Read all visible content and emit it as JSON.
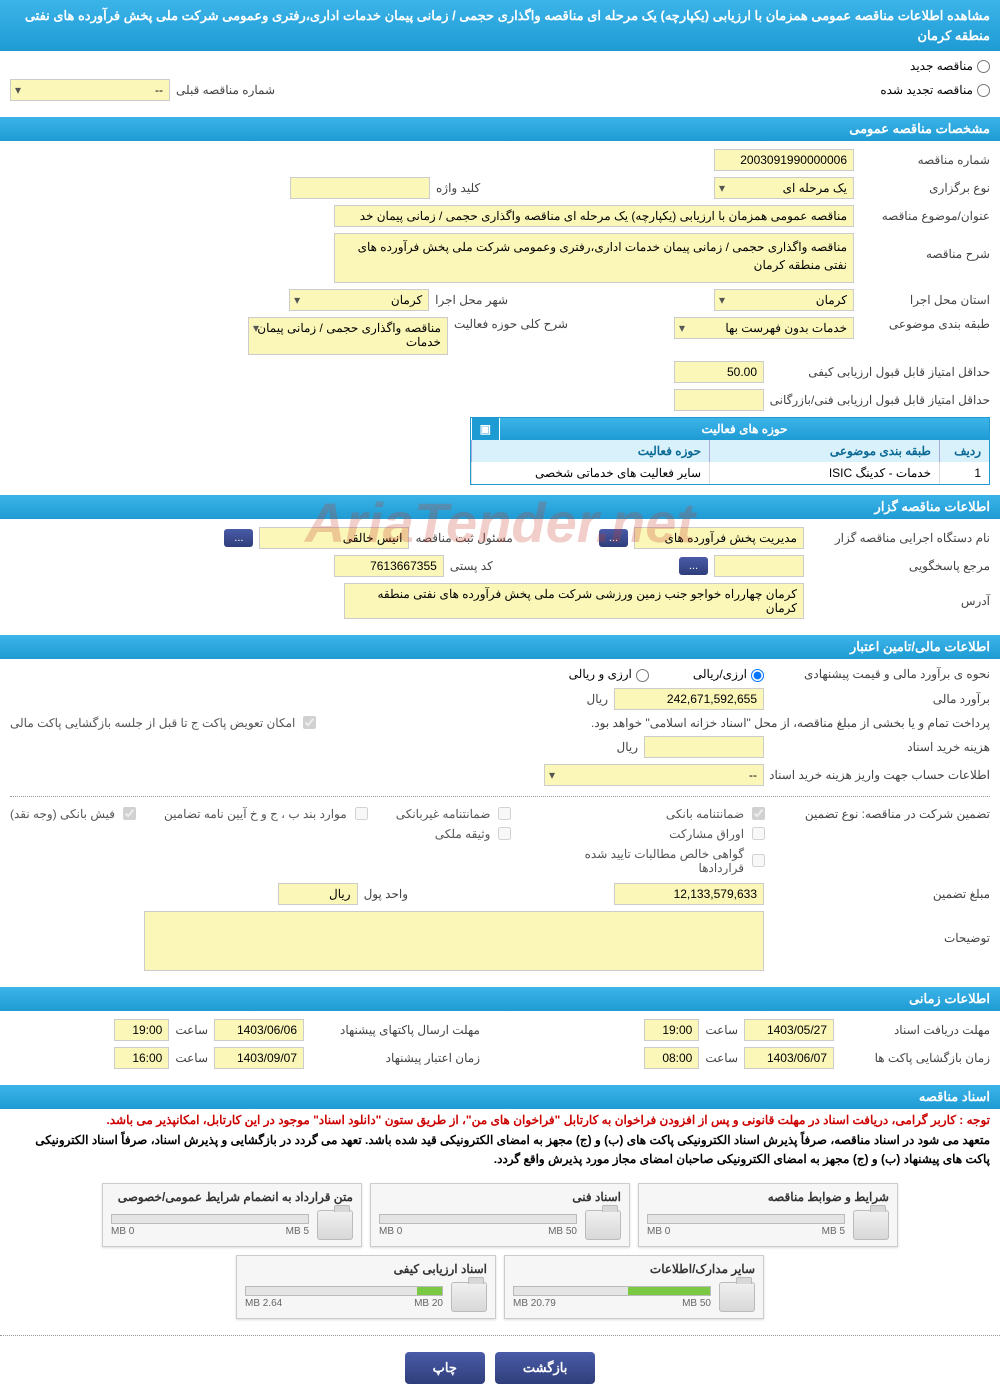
{
  "page_title": "مشاهده اطلاعات مناقصه عمومی همزمان با ارزیابی (یکپارچه) یک مرحله ای مناقصه واگذاری حجمی / زمانی پیمان خدمات اداری،رفتری وعمومی شرکت ملی پخش فرآورده های نفتی منطقه کرمان",
  "top": {
    "radio_new": "مناقصه جدید",
    "radio_renewed": "مناقصه تجدید شده",
    "prev_tender_label": "شماره مناقصه قبلی",
    "prev_tender_value": "--"
  },
  "sections": {
    "general": "مشخصات مناقصه عمومی",
    "organizer": "اطلاعات مناقصه گزار",
    "financial": "اطلاعات مالی/تامین اعتبار",
    "timing": "اطلاعات زمانی",
    "docs": "اسناد مناقصه"
  },
  "general": {
    "tender_no_label": "شماره مناقصه",
    "tender_no": "2003091990000006",
    "type_label": "نوع برگزاری",
    "type": "یک مرحله ای",
    "keyword_label": "کلید واژه",
    "subject_label": "عنوان/موضوع مناقصه",
    "subject": "مناقصه عمومی همزمان با ارزیابی (یکپارچه) یک مرحله ای مناقصه واگذاری حجمی / زمانی پیمان خد",
    "desc_label": "شرح مناقصه",
    "desc": "مناقصه واگذاری حجمی / زمانی پیمان خدمات اداری،رفتری وعمومی شرکت ملی پخش فرآورده های نفتی منطقه کرمان",
    "province_label": "استان محل اجرا",
    "province": "کرمان",
    "city_label": "شهر محل اجرا",
    "city": "کرمان",
    "category_label": "طبقه بندی موضوعی",
    "category": "خدمات بدون فهرست بها",
    "activity_label": "شرح کلی حوزه فعالیت",
    "activity": "مناقصه واگذاری حجمی / زمانی پیمان خدمات",
    "min_quality_label": "حداقل امتیاز قابل قبول ارزیابی کیفی",
    "min_quality": "50.00",
    "min_tech_label": "حداقل امتیاز قابل قبول ارزیابی فنی/بازرگانی",
    "table_title": "حوزه های فعالیت",
    "th_row": "ردیف",
    "th_cat": "طبقه بندی موضوعی",
    "th_act": "حوزه فعالیت",
    "tr": {
      "n": "1",
      "cat": "خدمات - کدینگ ISIC",
      "act": "سایر فعالیت های خدماتی شخصی"
    }
  },
  "organizer": {
    "exec_label": "نام دستگاه اجرایی مناقصه گزار",
    "exec": "مدیریت پخش فرآورده های",
    "reg_label": "مسئول ثبت مناقصه",
    "reg": "انیس  خالقی",
    "resp_label": "مرجع پاسخگویی",
    "post_label": "کد پستی",
    "post": "7613667355",
    "addr_label": "آدرس",
    "addr": "کرمان چهارراه خواجو جنب زمین ورزشی شرکت ملی پخش فرآورده های نفتی منطقه کرمان",
    "btn_more": "..."
  },
  "financial": {
    "method_label": "نحوه ی برآورد مالی و قیمت پیشنهادی",
    "method_opt1": "ارزی/ریالی",
    "method_opt2": "ارزی و ریالی",
    "estimate_label": "برآورد مالی",
    "estimate": "242,671,592,655",
    "currency": "ریال",
    "source_note": "پرداخت تمام و یا بخشی از مبلغ مناقصه، از محل \"اسناد خزانه اسلامی\" خواهد بود.",
    "swap_label": "امکان تعویض پاکت ج تا قبل از جلسه بازگشایی پاکت مالی",
    "doc_fee_label": "هزینه خرید اسناد",
    "doc_fee_currency": "ریال",
    "fee_account_label": "اطلاعات حساب جهت واریز هزینه خرید اسناد",
    "fee_account": "--",
    "guarantee_type_label": "تضمین شرکت در مناقصه:   نوع تضمین",
    "cb1": "ضمانتنامه بانکی",
    "cb2": "ضمانتنامه غیربانکی",
    "cb3": "موارد بند ب ، ج و خ آیین نامه تضامین",
    "cb4": "فیش بانکی (وجه نقد)",
    "cb5": "اوراق مشارکت",
    "cb6": "وثیقه ملکی",
    "cb7": "گواهی خالص مطالبات تایید شده قراردادها",
    "guarantee_amt_label": "مبلغ تضمین",
    "guarantee_amt": "12,133,579,633",
    "unit_label": "واحد پول",
    "unit": "ریال",
    "notes_label": "توضیحات"
  },
  "timing": {
    "doc_deadline_label": "مهلت دریافت اسناد",
    "doc_deadline_date": "1403/05/27",
    "doc_deadline_time": "19:00",
    "pkg_send_label": "مهلت ارسال پاکتهای پیشنهاد",
    "pkg_send_date": "1403/06/06",
    "pkg_send_time": "19:00",
    "open_label": "زمان بازگشایی پاکت ها",
    "open_date": "1403/06/07",
    "open_time": "08:00",
    "validity_label": "زمان اعتبار پیشنهاد",
    "validity_date": "1403/09/07",
    "validity_time": "16:00",
    "tlabel": "ساعت"
  },
  "docs": {
    "red_note": "توجه : کاربر گرامی، دریافت اسناد در مهلت قانونی و پس از افزودن فراخوان به کارتابل \"فراخوان های من\"، از طریق ستون \"دانلود اسناد\" موجود در این کارتابل، امکانپذیر می باشد.",
    "black_note": "متعهد می شود در اسناد مناقصه، صرفاً پذیرش اسناد الکترونیکی پاکت های (ب) و (ج) مجهز به امضای الکترونیکی قید شده باشد. تعهد می گردد در بازگشایی و پذیرش اسناد، صرفاً اسناد الکترونیکی پاکت های پیشنهاد (ب) و (ج) مجهز به امضای الکترونیکی صاحبان امضای مجاز مورد پذیرش واقع گردد.",
    "items": [
      {
        "title": "شرایط و ضوابط مناقصه",
        "used": "0 MB",
        "cap": "5 MB",
        "pct": 0
      },
      {
        "title": "اسناد فنی",
        "used": "0 MB",
        "cap": "50 MB",
        "pct": 0
      },
      {
        "title": "متن قرارداد به انضمام شرایط عمومی/خصوصی",
        "used": "0 MB",
        "cap": "5 MB",
        "pct": 0
      },
      {
        "title": "سایر مدارک/اطلاعات",
        "used": "20.79 MB",
        "cap": "50 MB",
        "pct": 42
      },
      {
        "title": "اسناد ارزیابی کیفی",
        "used": "2.64 MB",
        "cap": "20 MB",
        "pct": 13
      }
    ]
  },
  "footer": {
    "back": "بازگشت",
    "print": "چاپ"
  },
  "watermark": "AriaTender.net"
}
